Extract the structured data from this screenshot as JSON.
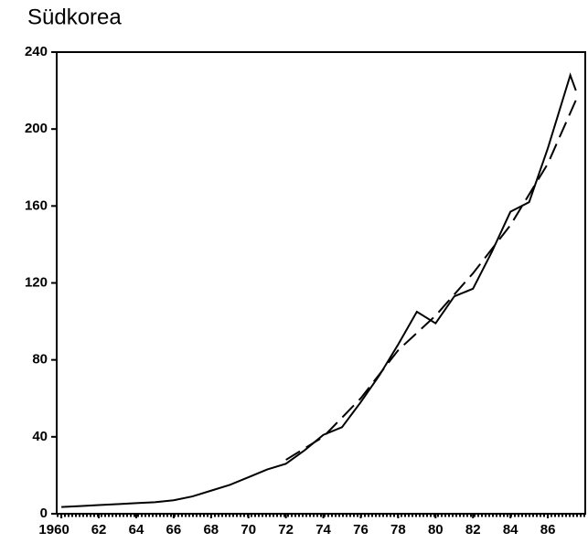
{
  "chart_data": {
    "type": "line",
    "title": "Südkorea",
    "xlim": [
      1959.75,
      1988
    ],
    "ylim": [
      0,
      240
    ],
    "xticks": [
      1960,
      {
        "value": 1962,
        "label": "62"
      },
      {
        "value": 1964,
        "label": "64"
      },
      {
        "value": 1966,
        "label": "66"
      },
      {
        "value": 1968,
        "label": "68"
      },
      {
        "value": 1970,
        "label": "70"
      },
      {
        "value": 1972,
        "label": "72"
      },
      {
        "value": 1974,
        "label": "74"
      },
      {
        "value": 1976,
        "label": "76"
      },
      {
        "value": 1978,
        "label": "78"
      },
      {
        "value": 1980,
        "label": "80"
      },
      {
        "value": 1982,
        "label": "82"
      },
      {
        "value": 1984,
        "label": "84"
      },
      {
        "value": 1986,
        "label": "86"
      }
    ],
    "yticks": [
      0,
      40,
      80,
      120,
      160,
      200,
      240
    ],
    "series": [
      {
        "color": "#000000",
        "style": "solid",
        "x": [
          1960,
          1961,
          1962,
          1963,
          1964,
          1965,
          1966,
          1967,
          1968,
          1969,
          1970,
          1971,
          1972,
          1973,
          1974,
          1975,
          1976,
          1977,
          1978,
          1979,
          1980,
          1981,
          1982,
          1983,
          1984,
          1985,
          1986,
          1987.2,
          1987.5
        ],
        "values": [
          3.5,
          4,
          4.5,
          5,
          5.5,
          6,
          7,
          9,
          12,
          15,
          19,
          23,
          26,
          33,
          41,
          45,
          58,
          72,
          88,
          105,
          99,
          113,
          117,
          136,
          157,
          162,
          190,
          228,
          220
        ]
      },
      {
        "color": "#000000",
        "style": "dashed",
        "x": [
          1972,
          1974,
          1976,
          1978,
          1980,
          1982,
          1984,
          1986,
          1987.5
        ],
        "values": [
          28,
          40,
          60,
          85,
          103,
          125,
          150,
          182,
          215
        ]
      }
    ]
  }
}
